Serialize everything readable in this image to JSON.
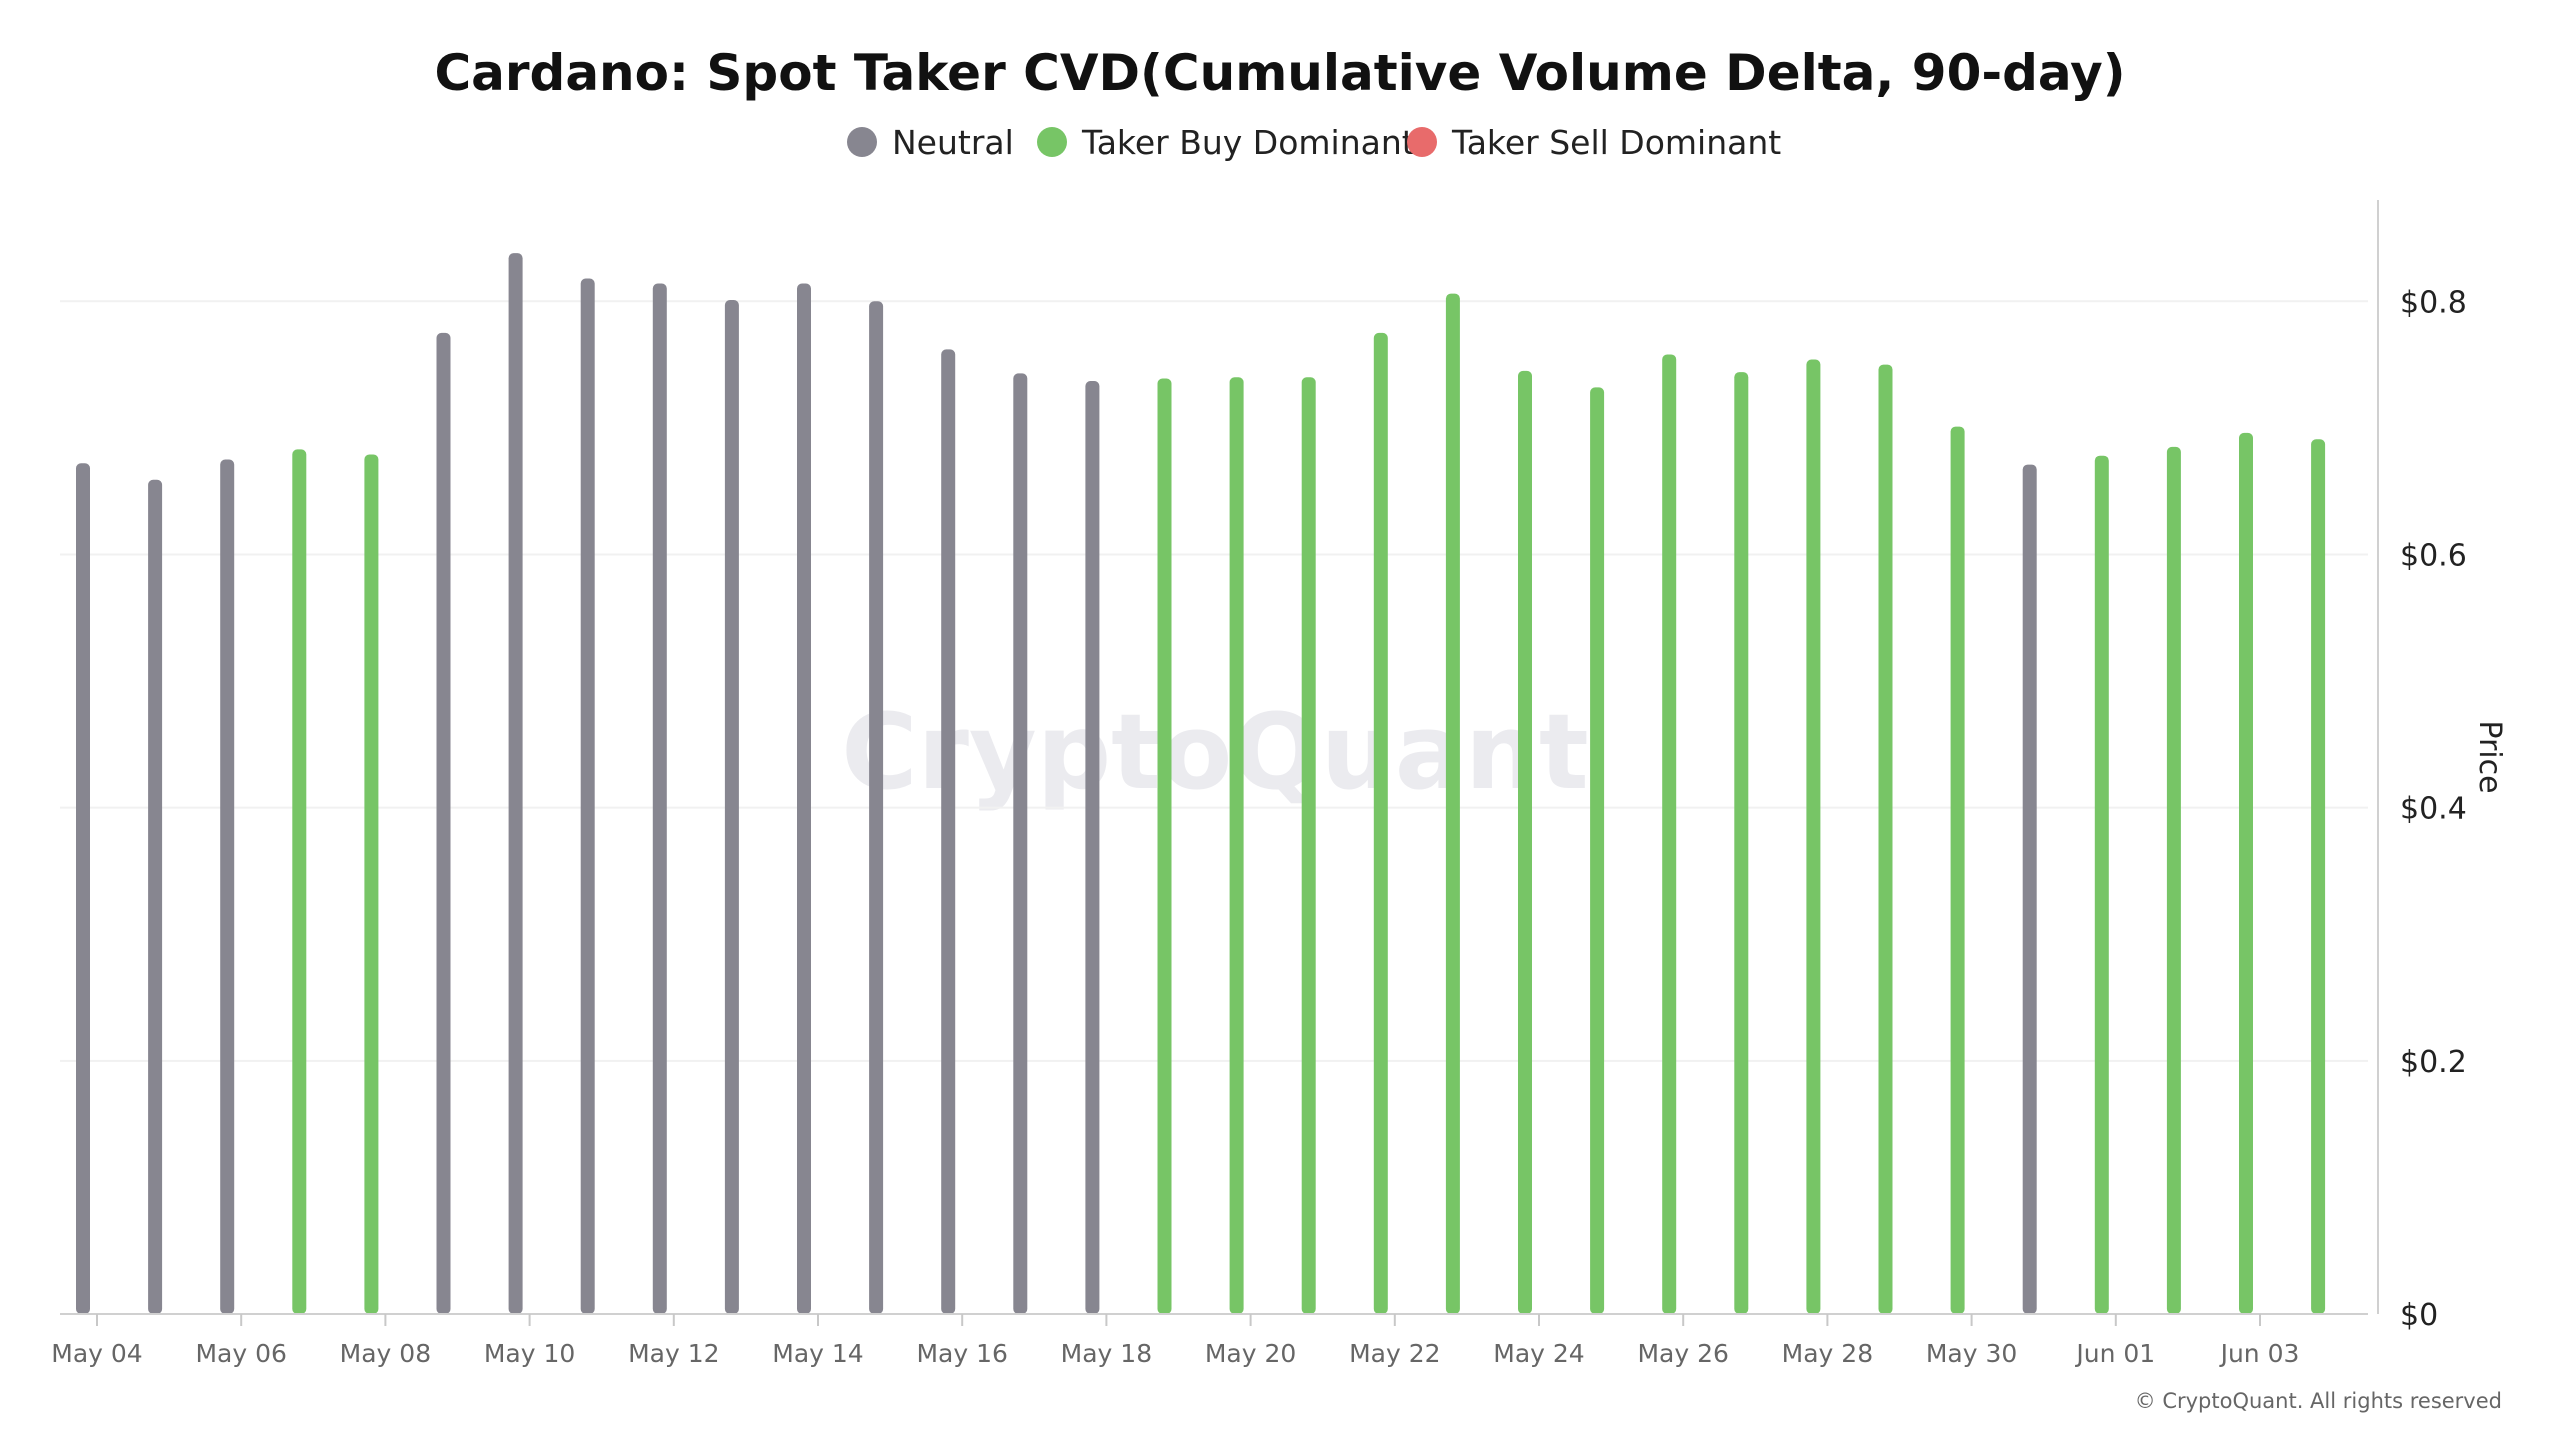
{
  "chart_data": {
    "type": "bar",
    "title": "Cardano: Spot Taker CVD(Cumulative Volume Delta, 90-day)",
    "ylabel": "Price",
    "ylim": [
      0,
      0.88
    ],
    "y_ticks": [
      0,
      0.2,
      0.4,
      0.6,
      0.8
    ],
    "y_tick_labels": [
      "$0",
      "$0.2",
      "$0.4",
      "$0.6",
      "$0.8"
    ],
    "y_axis_side": "right",
    "x_tick_labels": [
      {
        "date": "2024-05-04",
        "label": "May 04"
      },
      {
        "date": "2024-05-06",
        "label": "May 06"
      },
      {
        "date": "2024-05-08",
        "label": "May 08"
      },
      {
        "date": "2024-05-10",
        "label": "May 10"
      },
      {
        "date": "2024-05-12",
        "label": "May 12"
      },
      {
        "date": "2024-05-14",
        "label": "May 14"
      },
      {
        "date": "2024-05-16",
        "label": "May 16"
      },
      {
        "date": "2024-05-18",
        "label": "May 18"
      },
      {
        "date": "2024-05-20",
        "label": "May 20"
      },
      {
        "date": "2024-05-22",
        "label": "May 22"
      },
      {
        "date": "2024-05-24",
        "label": "May 24"
      },
      {
        "date": "2024-05-26",
        "label": "May 26"
      },
      {
        "date": "2024-05-28",
        "label": "May 28"
      },
      {
        "date": "2024-05-30",
        "label": "May 30"
      },
      {
        "date": "2024-06-01",
        "label": "Jun 01"
      },
      {
        "date": "2024-06-03",
        "label": "Jun 03"
      }
    ],
    "grid": true,
    "legend_position": "top-center",
    "legend": [
      {
        "key": "neutral",
        "label": "Neutral",
        "color": "#878690"
      },
      {
        "key": "buy",
        "label": "Taker Buy Dominant",
        "color": "#77c566"
      },
      {
        "key": "sell",
        "label": "Taker Sell Dominant",
        "color": "#e86b6b"
      }
    ],
    "bars": [
      {
        "date": "2024-05-04",
        "value": 0.672,
        "category": "neutral"
      },
      {
        "date": "2024-05-05",
        "value": 0.659,
        "category": "neutral"
      },
      {
        "date": "2024-05-06",
        "value": 0.675,
        "category": "neutral"
      },
      {
        "date": "2024-05-07",
        "value": 0.683,
        "category": "buy"
      },
      {
        "date": "2024-05-08",
        "value": 0.679,
        "category": "buy"
      },
      {
        "date": "2024-05-09",
        "value": 0.775,
        "category": "neutral"
      },
      {
        "date": "2024-05-10",
        "value": 0.838,
        "category": "neutral"
      },
      {
        "date": "2024-05-11",
        "value": 0.818,
        "category": "neutral"
      },
      {
        "date": "2024-05-12",
        "value": 0.814,
        "category": "neutral"
      },
      {
        "date": "2024-05-13",
        "value": 0.801,
        "category": "neutral"
      },
      {
        "date": "2024-05-14",
        "value": 0.814,
        "category": "neutral"
      },
      {
        "date": "2024-05-15",
        "value": 0.8,
        "category": "neutral"
      },
      {
        "date": "2024-05-16",
        "value": 0.762,
        "category": "neutral"
      },
      {
        "date": "2024-05-17",
        "value": 0.743,
        "category": "neutral"
      },
      {
        "date": "2024-05-18",
        "value": 0.737,
        "category": "neutral"
      },
      {
        "date": "2024-05-19",
        "value": 0.739,
        "category": "buy"
      },
      {
        "date": "2024-05-20",
        "value": 0.74,
        "category": "buy"
      },
      {
        "date": "2024-05-21",
        "value": 0.74,
        "category": "buy"
      },
      {
        "date": "2024-05-22",
        "value": 0.775,
        "category": "buy"
      },
      {
        "date": "2024-05-23",
        "value": 0.806,
        "category": "buy"
      },
      {
        "date": "2024-05-24",
        "value": 0.745,
        "category": "buy"
      },
      {
        "date": "2024-05-25",
        "value": 0.732,
        "category": "buy"
      },
      {
        "date": "2024-05-26",
        "value": 0.758,
        "category": "buy"
      },
      {
        "date": "2024-05-27",
        "value": 0.744,
        "category": "buy"
      },
      {
        "date": "2024-05-28",
        "value": 0.754,
        "category": "buy"
      },
      {
        "date": "2024-05-29",
        "value": 0.75,
        "category": "buy"
      },
      {
        "date": "2024-05-30",
        "value": 0.701,
        "category": "buy"
      },
      {
        "date": "2024-05-31",
        "value": 0.671,
        "category": "neutral"
      },
      {
        "date": "2024-06-01",
        "value": 0.678,
        "category": "buy"
      },
      {
        "date": "2024-06-02",
        "value": 0.685,
        "category": "buy"
      },
      {
        "date": "2024-06-03",
        "value": 0.696,
        "category": "buy"
      },
      {
        "date": "2024-06-04",
        "value": 0.691,
        "category": "buy"
      }
    ]
  },
  "watermark": "CryptoQuant",
  "copyright": "© CryptoQuant. All rights reserved"
}
